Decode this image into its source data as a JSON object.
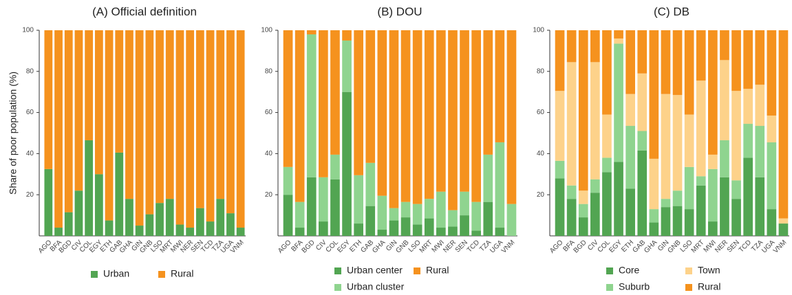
{
  "chart_data": [
    {
      "type": "stacked-bar",
      "title": "(A) Official definition",
      "y_label": "Share of poor population (%)",
      "categories": [
        "AGO",
        "BFA",
        "BGD",
        "CIV",
        "COL",
        "EGY",
        "ETH",
        "GAB",
        "GHA",
        "GIN",
        "GNB",
        "LSO",
        "MRT",
        "MWI",
        "NER",
        "SEN",
        "TCD",
        "TZA",
        "UGA",
        "VNM"
      ],
      "series": [
        {
          "name": "Urban",
          "color": "#52a552",
          "values": [
            32.5,
            4,
            11.5,
            22,
            46.5,
            30,
            7.5,
            40.5,
            18,
            5,
            10.5,
            16,
            18,
            5.5,
            4,
            13.5,
            7,
            18,
            11,
            4
          ]
        },
        {
          "name": "Rural",
          "color": "#f5921e",
          "values": [
            67.5,
            96,
            88.5,
            78,
            53.5,
            70,
            92.5,
            59.5,
            82,
            95,
            89.5,
            84,
            82,
            94.5,
            96,
            86.5,
            93,
            82,
            89,
            96
          ]
        }
      ],
      "ylim": [
        0,
        100
      ],
      "yticks": [
        20,
        40,
        60,
        80,
        100
      ]
    },
    {
      "type": "stacked-bar",
      "title": "(B) DOU",
      "categories": [
        "AGO",
        "BFA",
        "BGD",
        "CIV",
        "COL",
        "EGY",
        "ETH",
        "GAB",
        "GHA",
        "GIN",
        "GNB",
        "LSO",
        "MRT",
        "MWI",
        "NER",
        "SEN",
        "TCD",
        "TZA",
        "UGA",
        "VNM"
      ],
      "series": [
        {
          "name": "Urban center",
          "color": "#52a552",
          "values": [
            20,
            4,
            28.5,
            7,
            27.5,
            70,
            6,
            14.5,
            3,
            7.5,
            9,
            5.5,
            8.5,
            4,
            4.5,
            10,
            2.5,
            16.5,
            4,
            0
          ]
        },
        {
          "name": "Urban cluster",
          "color": "#8fd48f",
          "values": [
            13.5,
            12.5,
            69.5,
            21.5,
            12,
            25,
            23.5,
            21,
            16.5,
            6,
            7.5,
            10,
            9.5,
            17.5,
            8,
            11.5,
            14,
            23,
            41.5,
            15.5
          ]
        },
        {
          "name": "Rural",
          "color": "#f5921e",
          "values": [
            66.5,
            83.5,
            2,
            71.5,
            60.5,
            5,
            70.5,
            64.5,
            80.5,
            86.5,
            83.5,
            84.5,
            82,
            78.5,
            87.5,
            78.5,
            83.5,
            60.5,
            54.5,
            84.5
          ]
        }
      ],
      "ylim": [
        0,
        100
      ],
      "yticks": [
        20,
        40,
        60,
        80,
        100
      ]
    },
    {
      "type": "stacked-bar",
      "title": "(C) DB",
      "categories": [
        "AGO",
        "BFA",
        "BGD",
        "CIV",
        "COL",
        "EGY",
        "ETH",
        "GAB",
        "GHA",
        "GIN",
        "GNB",
        "LSO",
        "MRT",
        "MWI",
        "NER",
        "SEN",
        "TCD",
        "TZA",
        "UGA",
        "VNM"
      ],
      "series": [
        {
          "name": "Core",
          "color": "#52a552",
          "values": [
            28,
            18,
            9,
            21,
            31,
            36,
            23,
            41.5,
            6.5,
            14,
            14.5,
            13,
            24.5,
            7,
            28.5,
            18,
            38,
            28.5,
            13,
            6
          ]
        },
        {
          "name": "Suburb",
          "color": "#8fd48f",
          "values": [
            8.5,
            6.5,
            6.5,
            6.5,
            7,
            57.5,
            30.5,
            9.5,
            6.5,
            4,
            7.5,
            20.5,
            4.5,
            25.5,
            18,
            9,
            16.5,
            25,
            32.5,
            0
          ]
        },
        {
          "name": "Town",
          "color": "#fdd28a",
          "values": [
            34,
            60,
            6.5,
            57,
            21,
            2.5,
            15.5,
            28,
            24.5,
            51,
            46.5,
            25.5,
            46.5,
            7,
            39,
            43.5,
            17,
            20,
            13,
            2.5
          ]
        },
        {
          "name": "Rural",
          "color": "#f5921e",
          "values": [
            29.5,
            15.5,
            78,
            15.5,
            41,
            4,
            31,
            21,
            62.5,
            31,
            31.5,
            41,
            24.5,
            60.5,
            14.5,
            29.5,
            28.5,
            26.5,
            41.5,
            91.5
          ]
        }
      ],
      "ylim": [
        0,
        100
      ],
      "yticks": [
        20,
        40,
        60,
        80,
        100
      ]
    }
  ]
}
